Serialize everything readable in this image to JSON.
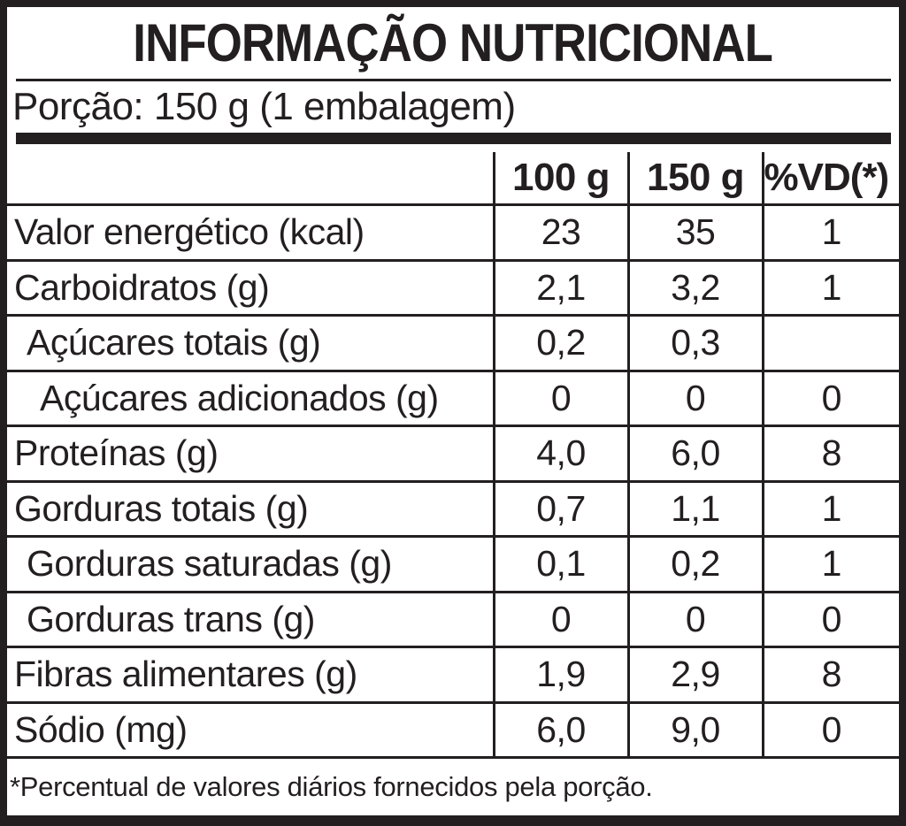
{
  "label": {
    "title": "INFORMAÇÃO NUTRICIONAL",
    "portion": "Porção: 150 g (1 embalagem)",
    "footnote": "*Percentual de valores diários fornecidos pela porção.",
    "colors": {
      "ink": "#231f20",
      "background": "#ffffff"
    },
    "table": {
      "columns": {
        "nutrient": "",
        "per100": "100 g",
        "per150": "150 g",
        "vd": "%VD(*)"
      },
      "rows": [
        {
          "label": "Valor energético (kcal)",
          "per100": "23",
          "per150": "35",
          "vd": "1"
        },
        {
          "label": "Carboidratos (g)",
          "per100": "2,1",
          "per150": "3,2",
          "vd": "1"
        },
        {
          "label": "Açúcares totais (g)",
          "per100": "0,2",
          "per150": "0,3",
          "vd": ""
        },
        {
          "label": "Açúcares adicionados (g)",
          "per100": "0",
          "per150": "0",
          "vd": "0"
        },
        {
          "label": "Proteínas (g)",
          "per100": "4,0",
          "per150": "6,0",
          "vd": "8"
        },
        {
          "label": "Gorduras totais (g)",
          "per100": "0,7",
          "per150": "1,1",
          "vd": "1"
        },
        {
          "label": "Gorduras saturadas (g)",
          "per100": "0,1",
          "per150": "0,2",
          "vd": "1"
        },
        {
          "label": "Gorduras trans (g)",
          "per100": "0",
          "per150": "0",
          "vd": "0"
        },
        {
          "label": "Fibras alimentares (g)",
          "per100": "1,9",
          "per150": "2,9",
          "vd": "8"
        },
        {
          "label": "Sódio (mg)",
          "per100": "6,0",
          "per150": "9,0",
          "vd": "0"
        }
      ]
    }
  }
}
